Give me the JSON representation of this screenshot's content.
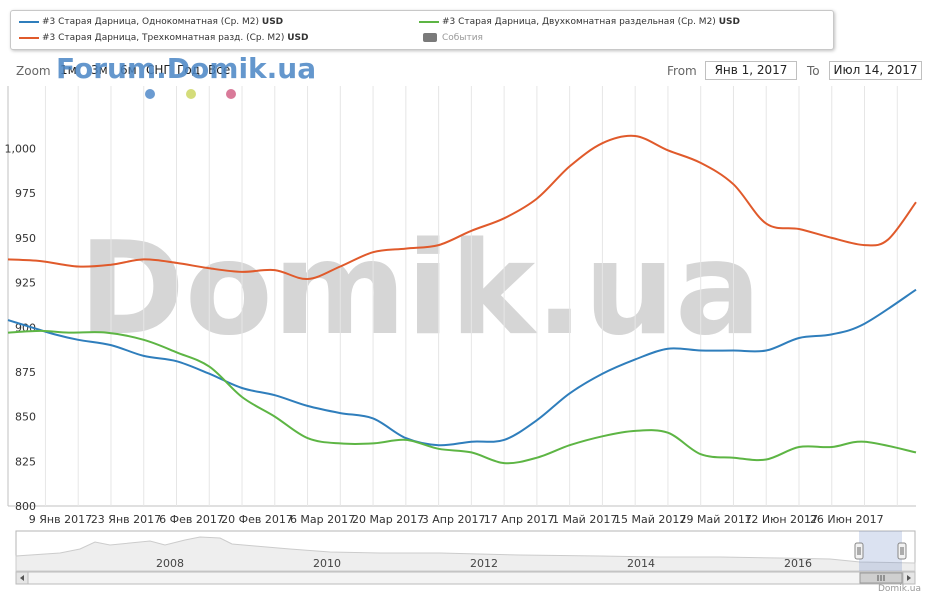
{
  "legend": {
    "items": [
      {
        "label": "#3 Старая Дарница, Однокомнатная (Ср. M2)",
        "unit": "USD",
        "color": "#2f7ebc"
      },
      {
        "label": "#3 Старая Дарница, Двухкомнатная раздельная (Ср. M2)",
        "unit": "USD",
        "color": "#5db544"
      },
      {
        "label": "#3 Старая Дарница, Трехкомнатная разд. (Ср. M2)",
        "unit": "USD",
        "color": "#e05a2b"
      }
    ],
    "events_label": "События",
    "events_color": "#7a7a7a"
  },
  "zoom": {
    "label": "Zoom",
    "buttons": [
      "1м",
      "3м",
      "6м",
      "СНГ",
      "Год",
      "Все"
    ]
  },
  "range": {
    "from_label": "From",
    "from_value": "Янв 1, 2017",
    "to_label": "To",
    "to_value": "Июл 14, 2017"
  },
  "watermark": {
    "small": "Forum.Domik.ua",
    "big": "Domik.ua"
  },
  "dots": [
    "#6b9bd1",
    "#d4dc7a",
    "#d97a99"
  ],
  "credit": "Domik.ua",
  "navigator": {
    "years": [
      "2008",
      "2010",
      "2012",
      "2014",
      "2016"
    ]
  },
  "chart_data": {
    "type": "line",
    "ylim": [
      800,
      1035
    ],
    "yticks": [
      800,
      825,
      850,
      875,
      900,
      925,
      950,
      975,
      1000
    ],
    "ytick_labels": [
      "800",
      "825",
      "850",
      "875",
      "900",
      "925",
      "950",
      "975",
      "1,000"
    ],
    "x_start": "2017-01-01",
    "x_end": "2017-07-14",
    "xticks": [
      {
        "date": "2017-01-09",
        "label": "9 Янв 2017"
      },
      {
        "date": "2017-01-23",
        "label": "23 Янв 2017"
      },
      {
        "date": "2017-02-06",
        "label": "6 Фев 2017"
      },
      {
        "date": "2017-02-20",
        "label": "20 Фев 2017"
      },
      {
        "date": "2017-03-06",
        "label": "6 Мар 2017"
      },
      {
        "date": "2017-03-20",
        "label": "20 Мар 2017"
      },
      {
        "date": "2017-04-03",
        "label": "3 Апр 2017"
      },
      {
        "date": "2017-04-17",
        "label": "17 Апр 2017"
      },
      {
        "date": "2017-05-01",
        "label": "1 Май 2017"
      },
      {
        "date": "2017-05-15",
        "label": "15 Май 2017"
      },
      {
        "date": "2017-05-29",
        "label": "29 Май 2017"
      },
      {
        "date": "2017-06-12",
        "label": "12 Июн 2017"
      },
      {
        "date": "2017-06-26",
        "label": "26 Июн 2017"
      }
    ],
    "series": [
      {
        "name": "#3 Старая Дарница, Однокомнатная (Ср. M2)",
        "color": "#2f7ebc",
        "points": [
          [
            "2017-01-01",
            904
          ],
          [
            "2017-01-06",
            900
          ],
          [
            "2017-01-11",
            896
          ],
          [
            "2017-01-16",
            893
          ],
          [
            "2017-01-23",
            890
          ],
          [
            "2017-01-30",
            884
          ],
          [
            "2017-02-06",
            881
          ],
          [
            "2017-02-13",
            874
          ],
          [
            "2017-02-20",
            866
          ],
          [
            "2017-02-27",
            862
          ],
          [
            "2017-03-06",
            856
          ],
          [
            "2017-03-13",
            852
          ],
          [
            "2017-03-20",
            849
          ],
          [
            "2017-03-27",
            838
          ],
          [
            "2017-04-03",
            834
          ],
          [
            "2017-04-10",
            836
          ],
          [
            "2017-04-17",
            837
          ],
          [
            "2017-04-24",
            848
          ],
          [
            "2017-05-01",
            863
          ],
          [
            "2017-05-08",
            874
          ],
          [
            "2017-05-15",
            882
          ],
          [
            "2017-05-22",
            888
          ],
          [
            "2017-05-29",
            887
          ],
          [
            "2017-06-05",
            887
          ],
          [
            "2017-06-12",
            887
          ],
          [
            "2017-06-19",
            894
          ],
          [
            "2017-06-26",
            896
          ],
          [
            "2017-07-03",
            902
          ],
          [
            "2017-07-14",
            921
          ]
        ]
      },
      {
        "name": "#3 Старая Дарница, Двухкомнатная раздельная (Ср. M2)",
        "color": "#5db544",
        "points": [
          [
            "2017-01-01",
            897
          ],
          [
            "2017-01-08",
            898
          ],
          [
            "2017-01-14",
            897
          ],
          [
            "2017-01-22",
            897
          ],
          [
            "2017-01-30",
            893
          ],
          [
            "2017-02-06",
            886
          ],
          [
            "2017-02-13",
            878
          ],
          [
            "2017-02-20",
            861
          ],
          [
            "2017-02-27",
            850
          ],
          [
            "2017-03-06",
            838
          ],
          [
            "2017-03-13",
            835
          ],
          [
            "2017-03-20",
            835
          ],
          [
            "2017-03-27",
            837
          ],
          [
            "2017-04-03",
            832
          ],
          [
            "2017-04-10",
            830
          ],
          [
            "2017-04-17",
            824
          ],
          [
            "2017-04-24",
            827
          ],
          [
            "2017-05-01",
            834
          ],
          [
            "2017-05-08",
            839
          ],
          [
            "2017-05-15",
            842
          ],
          [
            "2017-05-22",
            841
          ],
          [
            "2017-05-29",
            829
          ],
          [
            "2017-06-05",
            827
          ],
          [
            "2017-06-12",
            826
          ],
          [
            "2017-06-19",
            833
          ],
          [
            "2017-06-26",
            833
          ],
          [
            "2017-07-03",
            836
          ],
          [
            "2017-07-14",
            830
          ]
        ]
      },
      {
        "name": "#3 Старая Дарница, Трехкомнатная разд. (Ср. M2)",
        "color": "#e05a2b",
        "points": [
          [
            "2017-01-01",
            938
          ],
          [
            "2017-01-08",
            937
          ],
          [
            "2017-01-16",
            934
          ],
          [
            "2017-01-23",
            935
          ],
          [
            "2017-01-30",
            938
          ],
          [
            "2017-02-06",
            936
          ],
          [
            "2017-02-13",
            933
          ],
          [
            "2017-02-20",
            931
          ],
          [
            "2017-02-27",
            932
          ],
          [
            "2017-03-06",
            927
          ],
          [
            "2017-03-13",
            934
          ],
          [
            "2017-03-20",
            942
          ],
          [
            "2017-03-27",
            944
          ],
          [
            "2017-04-03",
            946
          ],
          [
            "2017-04-10",
            954
          ],
          [
            "2017-04-17",
            961
          ],
          [
            "2017-04-24",
            972
          ],
          [
            "2017-05-01",
            990
          ],
          [
            "2017-05-08",
            1003
          ],
          [
            "2017-05-15",
            1007
          ],
          [
            "2017-05-22",
            999
          ],
          [
            "2017-05-29",
            992
          ],
          [
            "2017-06-05",
            980
          ],
          [
            "2017-06-12",
            958
          ],
          [
            "2017-06-19",
            955
          ],
          [
            "2017-06-26",
            950
          ],
          [
            "2017-07-03",
            946
          ],
          [
            "2017-07-08",
            949
          ],
          [
            "2017-07-14",
            970
          ]
        ]
      }
    ]
  }
}
